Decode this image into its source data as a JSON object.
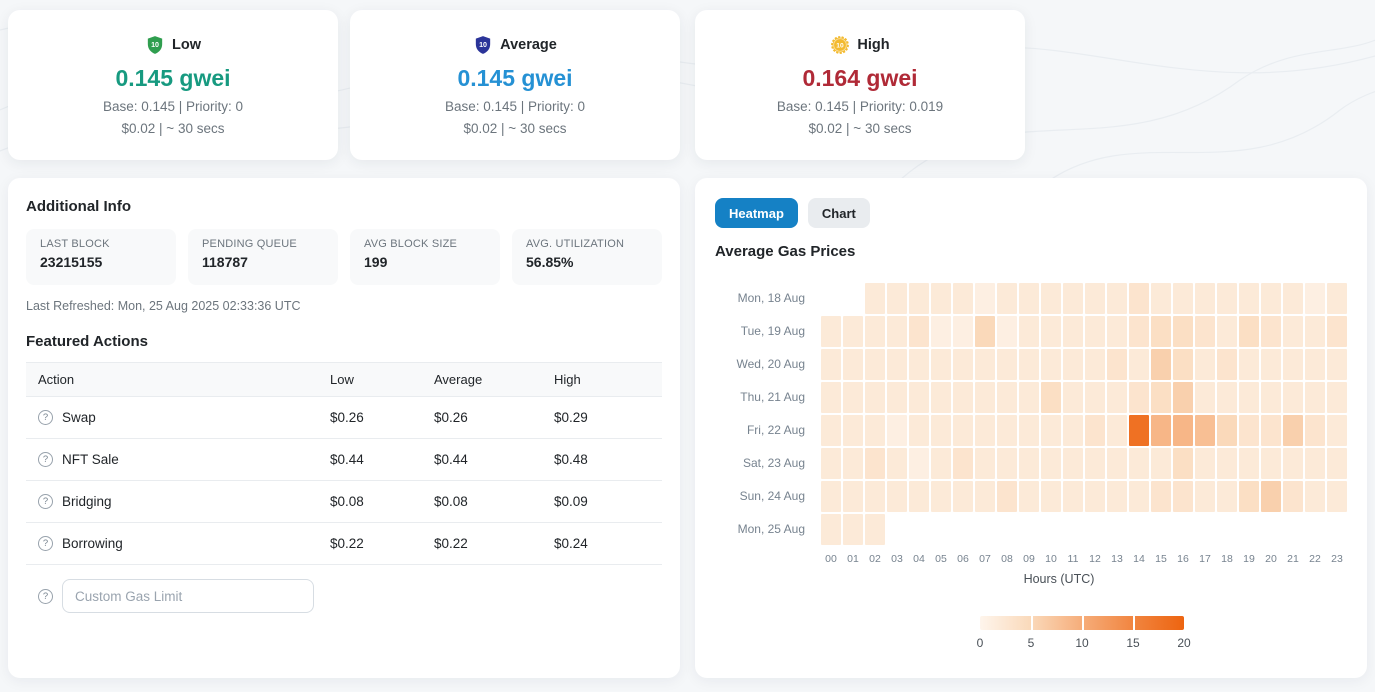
{
  "gas_cards": [
    {
      "id": "low",
      "label": "Low",
      "icon": "shield-10-green-icon",
      "icon_color": "#2f9e4f",
      "value": "0.145 gwei",
      "value_color": "#179a80",
      "detail": "Base: 0.145 | Priority: 0",
      "cost": "$0.02 | ~ 30 secs"
    },
    {
      "id": "average",
      "label": "Average",
      "icon": "shield-10-blue-icon",
      "icon_color": "#2b3499",
      "value": "0.145 gwei",
      "value_color": "#2591d4",
      "detail": "Base: 0.145 | Priority: 0",
      "cost": "$0.02 | ~ 30 secs"
    },
    {
      "id": "high",
      "label": "High",
      "icon": "medal-10-gold-icon",
      "icon_color": "#f3ba2f",
      "value": "0.164 gwei",
      "value_color": "#b02a37",
      "detail": "Base: 0.145 | Priority: 0.019",
      "cost": "$0.02 | ~ 30 secs"
    }
  ],
  "additional_info": {
    "title": "Additional Info",
    "stats": [
      {
        "label": "LAST BLOCK",
        "value": "23215155"
      },
      {
        "label": "PENDING QUEUE",
        "value": "118787"
      },
      {
        "label": "AVG BLOCK SIZE",
        "value": "199"
      },
      {
        "label": "AVG. UTILIZATION",
        "value": "56.85%"
      }
    ],
    "last_refreshed": "Last Refreshed: Mon, 25 Aug 2025 02:33:36 UTC"
  },
  "featured_actions": {
    "title": "Featured Actions",
    "columns": [
      "Action",
      "Low",
      "Average",
      "High"
    ],
    "rows": [
      {
        "action": "Swap",
        "low": "$0.26",
        "average": "$0.26",
        "high": "$0.29"
      },
      {
        "action": "NFT Sale",
        "low": "$0.44",
        "average": "$0.44",
        "high": "$0.48"
      },
      {
        "action": "Bridging",
        "low": "$0.08",
        "average": "$0.08",
        "high": "$0.09"
      },
      {
        "action": "Borrowing",
        "low": "$0.22",
        "average": "$0.22",
        "high": "$0.24"
      }
    ],
    "custom_input_placeholder": "Custom Gas Limit"
  },
  "heatmap_panel": {
    "tabs": [
      {
        "id": "heatmap",
        "label": "Heatmap",
        "active": true
      },
      {
        "id": "chart",
        "label": "Chart",
        "active": false
      }
    ],
    "active_tab_color": "#1581c5",
    "title": "Average Gas Prices"
  },
  "chart_data": {
    "type": "heatmap",
    "title": "Average Gas Prices",
    "xlabel": "Hours (UTC)",
    "x_labels": [
      "00",
      "01",
      "02",
      "03",
      "04",
      "05",
      "06",
      "07",
      "08",
      "09",
      "10",
      "11",
      "12",
      "13",
      "14",
      "15",
      "16",
      "17",
      "18",
      "19",
      "20",
      "21",
      "22",
      "23"
    ],
    "y_labels": [
      "Mon, 18 Aug",
      "Tue, 19 Aug",
      "Wed, 20 Aug",
      "Thu, 21 Aug",
      "Fri, 22 Aug",
      "Sat, 23 Aug",
      "Sun, 24 Aug",
      "Mon, 25 Aug"
    ],
    "values": [
      [
        null,
        null,
        2,
        2,
        2,
        2,
        2,
        1,
        2,
        2,
        2,
        2,
        2,
        2,
        3,
        2,
        2,
        2,
        2,
        2,
        2,
        2,
        1,
        2
      ],
      [
        2,
        2,
        2,
        2,
        3,
        1,
        1,
        5,
        1,
        2,
        2,
        2,
        2,
        2,
        3,
        4,
        4,
        3,
        2,
        4,
        3,
        2,
        2,
        3
      ],
      [
        2,
        2,
        2,
        2,
        2,
        2,
        2,
        2,
        2,
        2,
        2,
        2,
        2,
        3,
        2,
        6,
        4,
        2,
        3,
        2,
        2,
        2,
        2,
        2
      ],
      [
        2,
        2,
        2,
        2,
        2,
        2,
        2,
        2,
        2,
        2,
        4,
        2,
        2,
        2,
        3,
        4,
        6,
        2,
        2,
        2,
        2,
        2,
        2,
        2
      ],
      [
        2,
        2,
        2,
        1,
        2,
        2,
        2,
        2,
        2,
        2,
        2,
        2,
        3,
        2,
        18,
        9,
        9,
        8,
        5,
        3,
        3,
        6,
        3,
        2
      ],
      [
        2,
        2,
        3,
        2,
        1,
        2,
        3,
        2,
        2,
        2,
        2,
        2,
        2,
        2,
        2,
        2,
        4,
        2,
        2,
        2,
        2,
        2,
        2,
        2
      ],
      [
        2,
        2,
        2,
        2,
        2,
        2,
        2,
        2,
        3,
        2,
        2,
        2,
        2,
        2,
        2,
        3,
        3,
        2,
        2,
        4,
        6,
        3,
        2,
        2
      ],
      [
        2,
        2,
        2,
        null,
        null,
        null,
        null,
        null,
        null,
        null,
        null,
        null,
        null,
        null,
        null,
        null,
        null,
        null,
        null,
        null,
        null,
        null,
        null,
        null
      ]
    ],
    "scale": {
      "min": 0,
      "max": 20,
      "ticks": [
        "0",
        "5",
        "10",
        "15",
        "20"
      ],
      "colors": [
        "#fef5ec",
        "#fad9ba",
        "#f6ad7a",
        "#f18540",
        "#ed6410"
      ]
    },
    "legend_position": "bottom",
    "grid": false
  }
}
